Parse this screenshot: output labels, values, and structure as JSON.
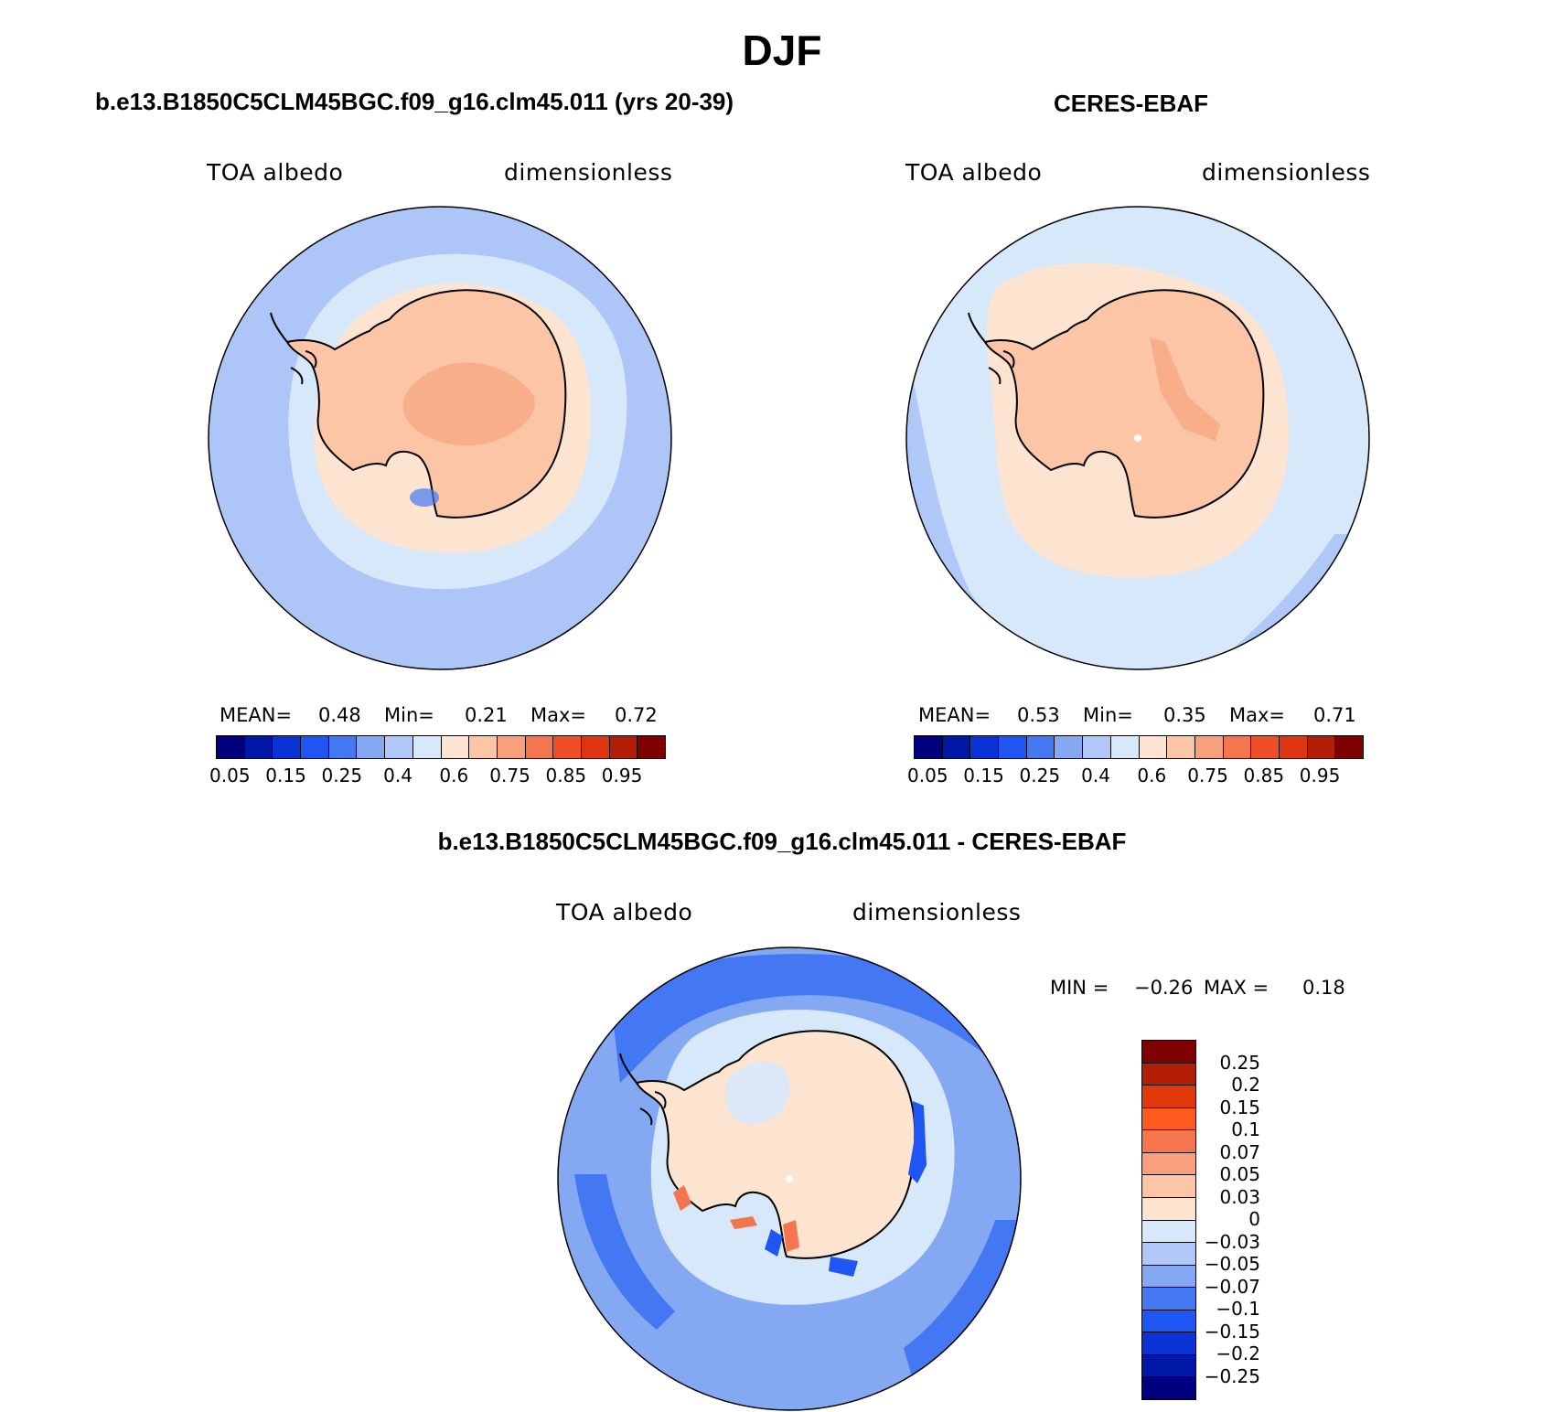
{
  "figure": {
    "title": "DJF"
  },
  "panels": {
    "model": {
      "title": "b.e13.B1850C5CLM45BGC.f09_g16.clm45.011 (yrs 20-39)",
      "variable": "TOA albedo",
      "units": "dimensionless",
      "mean_label": "MEAN=",
      "mean": "0.48",
      "min_label": "Min=",
      "min": "0.21",
      "max_label": "Max=",
      "max": "0.72"
    },
    "obs": {
      "title": "CERES-EBAF",
      "variable": "TOA albedo",
      "units": "dimensionless",
      "mean_label": "MEAN=",
      "mean": "0.53",
      "min_label": "Min=",
      "min": "0.35",
      "max_label": "Max=",
      "max": "0.71"
    },
    "diff": {
      "title": "b.e13.B1850C5CLM45BGC.f09_g16.clm45.011 - CERES-EBAF",
      "variable": "TOA albedo",
      "units": "dimensionless",
      "min_label": "MIN =",
      "min": "−0.26",
      "max_label": "MAX =",
      "max": "0.18"
    }
  },
  "colorbars": {
    "abs_colors": [
      "#00007f",
      "#0018a8",
      "#0a33d6",
      "#1f55f2",
      "#4478f2",
      "#85a8f2",
      "#b0c8f8",
      "#d8e8fb",
      "#fde4d0",
      "#fbc5a6",
      "#f8a07b",
      "#f5754e",
      "#f04e26",
      "#dc3510",
      "#b51e06",
      "#7f0000"
    ],
    "abs_ticks": [
      "0.05",
      "0.15",
      "0.25",
      "0.4",
      "0.6",
      "0.75",
      "0.85",
      "0.95"
    ],
    "diff_colors": [
      "#7f0000",
      "#b51e06",
      "#e03a0a",
      "#ff5a1f",
      "#f5754e",
      "#f8a07b",
      "#fbc5a6",
      "#fde4d0",
      "#d8e8fb",
      "#b0c8f8",
      "#85a8f2",
      "#4478f2",
      "#1f55f2",
      "#0a33d6",
      "#0018a8",
      "#00007f"
    ],
    "diff_ticks": [
      "0.25",
      "0.2",
      "0.15",
      "0.1",
      "0.07",
      "0.05",
      "0.03",
      "0",
      "−0.03",
      "−0.05",
      "−0.07",
      "−0.1",
      "−0.15",
      "−0.2",
      "−0.25"
    ]
  },
  "map_colors": {
    "model_ocean": "#aec6f7",
    "model_seaice": "#d8e8fb",
    "model_land": "#fbc5a6",
    "model_plateau": "#f8a882",
    "obs_ocean": "#d8e8fb",
    "obs_seaice": "#fde4d0",
    "obs_land": "#fbc5a6",
    "obs_ridge": "#f8a882",
    "diff_ocean": "#85a8f2",
    "diff_deep": "#4478f2",
    "diff_shelf": "#d8e8fb",
    "diff_land": "#fde4d0",
    "diff_pos": "#f5754e"
  }
}
